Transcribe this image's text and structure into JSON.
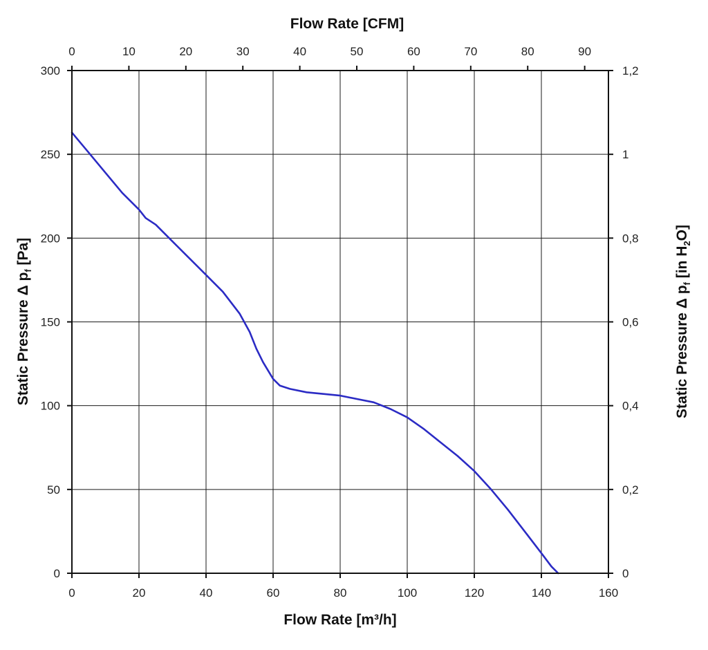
{
  "chart_data": {
    "type": "line",
    "xlabel": "Flow Rate [m³/h]",
    "x2label": "Flow Rate [CFM]",
    "ylabel_main": "Static Pressure Δ p",
    "ylabel_sub": "f",
    "ylabel_tail": " [Pa]",
    "y2label_main": "Static Pressure Δ p",
    "y2label_sub": "f",
    "y2label_tail1": " [in H",
    "y2label_sub2": "2",
    "y2label_tail2": "O]",
    "xlim": [
      0,
      160
    ],
    "ylim": [
      0,
      300
    ],
    "x2lim": [
      0,
      94.17
    ],
    "y2lim": [
      0,
      1.2
    ],
    "x_ticks": [
      "0",
      "20",
      "40",
      "60",
      "80",
      "100",
      "120",
      "140",
      "160"
    ],
    "y_ticks": [
      "0",
      "50",
      "100",
      "150",
      "200",
      "250",
      "300"
    ],
    "x2_ticks": [
      "0",
      "10",
      "20",
      "30",
      "40",
      "50",
      "60",
      "70",
      "80",
      "90"
    ],
    "y2_ticks": [
      "0",
      "0,2",
      "0,4",
      "0,6",
      "0,8",
      "1",
      "1,2"
    ],
    "grid": true,
    "line_color": "#2b2bc4",
    "series": [
      {
        "x": [
          0,
          5,
          10,
          15,
          20,
          22,
          25,
          30,
          35,
          40,
          45,
          50,
          53,
          55,
          57,
          60,
          62,
          65,
          70,
          75,
          80,
          85,
          90,
          95,
          100,
          105,
          110,
          115,
          120,
          125,
          130,
          135,
          140,
          143,
          145
        ],
        "y": [
          263,
          251,
          239,
          227,
          217,
          212,
          208,
          198,
          188,
          178,
          168,
          155,
          144,
          134,
          126,
          116,
          112,
          110,
          108,
          107,
          106,
          104,
          102,
          98,
          93,
          86,
          78,
          70,
          61,
          50,
          38,
          25,
          12,
          4,
          0
        ]
      }
    ]
  }
}
